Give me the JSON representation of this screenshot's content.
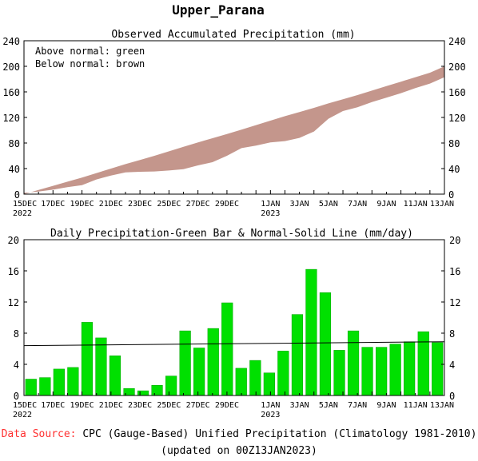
{
  "title": "Upper_Parana",
  "footer": {
    "source_label": "Data Source:",
    "source_text": "CPC (Gauge-Based) Unified Precipitation (Climatology 1981-2010)",
    "updated": "(updated on 00Z13JAN2023)"
  },
  "colors": {
    "below_normal_fill": "#c4968c",
    "bar": "#00e000",
    "bar_edge": "#00a000",
    "normal_line": "#000000",
    "source_label": "#ff3030"
  },
  "chart_data": [
    {
      "type": "area",
      "title": "Observed Accumulated Precipitation (mm)",
      "legend": [
        "Above normal: green",
        "Below normal: brown"
      ],
      "legend_placement": "top-left",
      "ylim": [
        0,
        240
      ],
      "yticks": [
        0,
        40,
        80,
        120,
        160,
        200,
        240
      ],
      "x_days": 29,
      "xtick_labels": [
        {
          "day": 0,
          "label": "15DEC",
          "sub": "2022"
        },
        {
          "day": 2,
          "label": "17DEC",
          "sub": ""
        },
        {
          "day": 4,
          "label": "19DEC",
          "sub": ""
        },
        {
          "day": 6,
          "label": "21DEC",
          "sub": ""
        },
        {
          "day": 8,
          "label": "23DEC",
          "sub": ""
        },
        {
          "day": 10,
          "label": "25DEC",
          "sub": ""
        },
        {
          "day": 12,
          "label": "27DEC",
          "sub": ""
        },
        {
          "day": 14,
          "label": "29DEC",
          "sub": ""
        },
        {
          "day": 17,
          "label": "1JAN",
          "sub": "2023"
        },
        {
          "day": 19,
          "label": "3JAN",
          "sub": ""
        },
        {
          "day": 21,
          "label": "5JAN",
          "sub": ""
        },
        {
          "day": 23,
          "label": "7JAN",
          "sub": ""
        },
        {
          "day": 25,
          "label": "9JAN",
          "sub": ""
        },
        {
          "day": 27,
          "label": "11JAN",
          "sub": ""
        },
        {
          "day": 29,
          "label": "13JAN",
          "sub": ""
        }
      ],
      "series": [
        {
          "name": "Normal",
          "values": [
            0,
            6.5,
            13,
            19.5,
            26,
            33,
            40,
            47,
            53.5,
            60,
            67,
            74,
            81,
            87.5,
            94,
            101,
            108,
            115,
            122,
            128.5,
            135,
            142,
            148.5,
            155,
            162,
            169,
            176,
            183,
            190,
            200
          ]
        },
        {
          "name": "Observed",
          "values": [
            2,
            4,
            7,
            11,
            14,
            23,
            29,
            34,
            35,
            35.5,
            37,
            39,
            45,
            50,
            60,
            72,
            76,
            81,
            83,
            88,
            98,
            118,
            130,
            136,
            144,
            151,
            158,
            166,
            173,
            183
          ]
        }
      ]
    },
    {
      "type": "bar",
      "title": "Daily Precipitation-Green Bar & Normal-Solid Line (mm/day)",
      "ylim": [
        0,
        20
      ],
      "yticks": [
        0,
        4,
        8,
        12,
        16,
        20
      ],
      "x_days": 29,
      "xtick_labels": [
        {
          "day": 0,
          "label": "15DEC",
          "sub": "2022"
        },
        {
          "day": 2,
          "label": "17DEC",
          "sub": ""
        },
        {
          "day": 4,
          "label": "19DEC",
          "sub": ""
        },
        {
          "day": 6,
          "label": "21DEC",
          "sub": ""
        },
        {
          "day": 8,
          "label": "23DEC",
          "sub": ""
        },
        {
          "day": 10,
          "label": "25DEC",
          "sub": ""
        },
        {
          "day": 12,
          "label": "27DEC",
          "sub": ""
        },
        {
          "day": 14,
          "label": "29DEC",
          "sub": ""
        },
        {
          "day": 17,
          "label": "1JAN",
          "sub": "2023"
        },
        {
          "day": 19,
          "label": "3JAN",
          "sub": ""
        },
        {
          "day": 21,
          "label": "5JAN",
          "sub": ""
        },
        {
          "day": 23,
          "label": "7JAN",
          "sub": ""
        },
        {
          "day": 25,
          "label": "9JAN",
          "sub": ""
        },
        {
          "day": 27,
          "label": "11JAN",
          "sub": ""
        },
        {
          "day": 29,
          "label": "13JAN",
          "sub": ""
        }
      ],
      "bars": [
        2.1,
        2.3,
        3.4,
        3.6,
        9.4,
        7.4,
        5.1,
        0.9,
        0.6,
        1.3,
        2.5,
        8.3,
        6.1,
        8.6,
        11.9,
        3.5,
        4.5,
        2.9,
        5.7,
        10.4,
        16.2,
        13.2,
        5.8,
        8.3,
        6.2,
        6.2,
        6.6,
        6.9,
        8.2,
        6.8
      ],
      "normal": [
        6.4,
        6.9
      ]
    }
  ]
}
